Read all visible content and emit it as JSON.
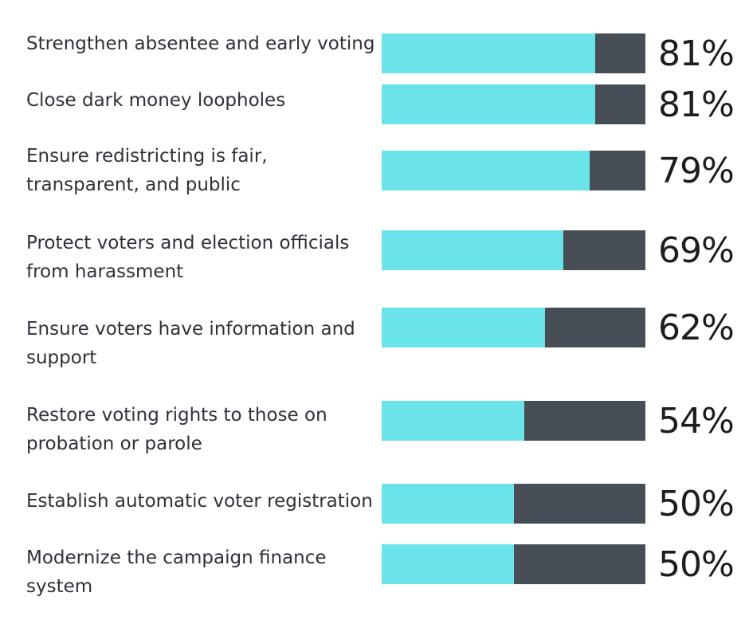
{
  "colors": {
    "fill": "#6ae4e8",
    "remainder": "#474e56",
    "label_text": "#2e3138",
    "value_text": "#1c1d20",
    "background": "#ffffff"
  },
  "chart_data": {
    "type": "bar",
    "orientation": "horizontal",
    "stacked_to_100": true,
    "categories": [
      "Strengthen absentee and early voting",
      "Close dark money loopholes",
      "Ensure redistricting is fair,\ntransparent, and public",
      "Protect voters and election officials\nfrom harassment",
      "Ensure voters have information and\nsupport",
      "Restore voting rights to those on\nprobation or parole",
      "Establish automatic voter registration",
      "Modernize the campaign finance\nsystem"
    ],
    "values": [
      81,
      81,
      79,
      69,
      62,
      54,
      50,
      50
    ],
    "value_labels": [
      "81%",
      "81%",
      "79%",
      "69%",
      "62%",
      "54%",
      "50%",
      "50%"
    ],
    "xlim": [
      0,
      100
    ],
    "title": "",
    "xlabel": "",
    "ylabel": "",
    "grid": false,
    "legend": "none"
  }
}
